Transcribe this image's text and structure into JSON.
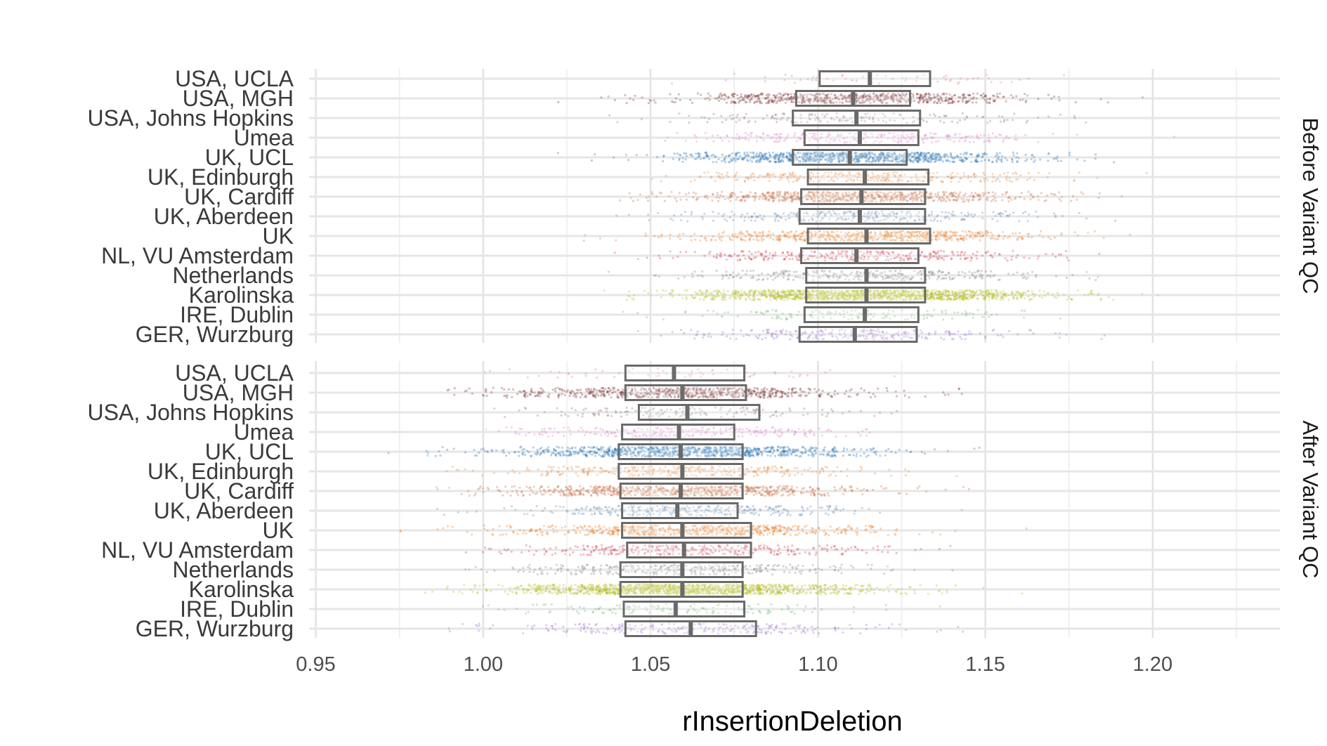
{
  "chart_data": {
    "type": "box-jitter",
    "xlabel": "rInsertionDeletion",
    "ylabel": "",
    "xlim": [
      0.948,
      1.238
    ],
    "x_ticks": [
      0.95,
      1.0,
      1.05,
      1.1,
      1.15,
      1.2
    ],
    "x_tick_labels": [
      "0.95",
      "1.00",
      "1.05",
      "1.10",
      "1.15",
      "1.20"
    ],
    "grid": true,
    "categories": [
      "USA, UCLA",
      "USA, MGH",
      "USA, Johns Hopkins",
      "Umea",
      "UK, UCL",
      "UK, Edinburgh",
      "UK, Cardiff",
      "UK, Aberdeen",
      "UK",
      "NL, VU Amsterdam",
      "Netherlands",
      "Karolinska",
      "IRE, Dublin",
      "GER, Wurzburg"
    ],
    "series_colors": {
      "USA, UCLA": "#e07b82",
      "USA, MGH": "#7b2f2f",
      "USA, Johns Hopkins": "#8c6d6d",
      "Umea": "#e37ac9",
      "UK, UCL": "#1f6fb4",
      "UK, Edinburgh": "#e8893a",
      "UK, Cardiff": "#c96a3a",
      "UK, Aberdeen": "#5e86b0",
      "UK": "#f07a1a",
      "NL, VU Amsterdam": "#d7334a",
      "Netherlands": "#7f7f7f",
      "Karolinska": "#b5be1c",
      "IRE, Dublin": "#6ab36a",
      "GER, Wurzburg": "#9a6bc9"
    },
    "density": {
      "USA, UCLA": 60,
      "USA, MGH": 700,
      "USA, Johns Hopkins": 160,
      "Umea": 260,
      "UK, UCL": 900,
      "UK, Edinburgh": 330,
      "UK, Cardiff": 700,
      "UK, Aberdeen": 300,
      "UK": 600,
      "NL, VU Amsterdam": 340,
      "Netherlands": 330,
      "Karolinska": 1300,
      "IRE, Dublin": 140,
      "GER, Wurzburg": 260
    },
    "facets": [
      {
        "label": "Before Variant QC",
        "boxes": {
          "USA, UCLA": {
            "q1": 1.1005,
            "median": 1.1155,
            "q3": 1.1335,
            "min": 1.078,
            "max": 1.162
          },
          "USA, MGH": {
            "q1": 1.0935,
            "median": 1.1105,
            "q3": 1.1275,
            "min": 1.03,
            "max": 1.2
          },
          "USA, Johns Hopkins": {
            "q1": 1.0925,
            "median": 1.1115,
            "q3": 1.1305,
            "min": 1.04,
            "max": 1.18
          },
          "Umea": {
            "q1": 1.096,
            "median": 1.1125,
            "q3": 1.13,
            "min": 1.055,
            "max": 1.17
          },
          "UK, UCL": {
            "q1": 1.0925,
            "median": 1.1095,
            "q3": 1.1265,
            "min": 1.025,
            "max": 1.195
          },
          "UK, Edinburgh": {
            "q1": 1.097,
            "median": 1.114,
            "q3": 1.133,
            "min": 1.045,
            "max": 1.185
          },
          "UK, Cardiff": {
            "q1": 1.095,
            "median": 1.113,
            "q3": 1.132,
            "min": 1.035,
            "max": 1.195
          },
          "UK, Aberdeen": {
            "q1": 1.0945,
            "median": 1.1125,
            "q3": 1.132,
            "min": 1.045,
            "max": 1.18
          },
          "UK": {
            "q1": 1.097,
            "median": 1.1145,
            "q3": 1.1335,
            "min": 1.04,
            "max": 1.19
          },
          "NL, VU Amsterdam": {
            "q1": 1.095,
            "median": 1.1115,
            "q3": 1.13,
            "min": 1.045,
            "max": 1.18
          },
          "Netherlands": {
            "q1": 1.0965,
            "median": 1.1145,
            "q3": 1.132,
            "min": 1.045,
            "max": 1.19
          },
          "Karolinska": {
            "q1": 1.0965,
            "median": 1.1145,
            "q3": 1.132,
            "min": 1.04,
            "max": 1.185
          },
          "IRE, Dublin": {
            "q1": 1.096,
            "median": 1.114,
            "q3": 1.13,
            "min": 1.055,
            "max": 1.17
          },
          "GER, Wurzburg": {
            "q1": 1.0945,
            "median": 1.111,
            "q3": 1.1295,
            "min": 1.045,
            "max": 1.18
          }
        }
      },
      {
        "label": "After Variant QC",
        "boxes": {
          "USA, UCLA": {
            "q1": 1.0425,
            "median": 1.057,
            "q3": 1.078,
            "min": 1.01,
            "max": 1.105
          },
          "USA, MGH": {
            "q1": 1.0425,
            "median": 1.0595,
            "q3": 1.0785,
            "min": 0.985,
            "max": 1.135
          },
          "USA, Johns Hopkins": {
            "q1": 1.0465,
            "median": 1.061,
            "q3": 1.0825,
            "min": 1.01,
            "max": 1.11
          },
          "Umea": {
            "q1": 1.0415,
            "median": 1.0585,
            "q3": 1.075,
            "min": 1.0,
            "max": 1.115
          },
          "UK, UCL": {
            "q1": 1.0405,
            "median": 1.059,
            "q3": 1.0775,
            "min": 0.98,
            "max": 1.135
          },
          "UK, Edinburgh": {
            "q1": 1.0405,
            "median": 1.0595,
            "q3": 1.0775,
            "min": 0.985,
            "max": 1.13
          },
          "UK, Cardiff": {
            "q1": 1.041,
            "median": 1.059,
            "q3": 1.0775,
            "min": 0.985,
            "max": 1.14
          },
          "UK, Aberdeen": {
            "q1": 1.0415,
            "median": 1.058,
            "q3": 1.076,
            "min": 0.995,
            "max": 1.12
          },
          "UK": {
            "q1": 1.0415,
            "median": 1.0595,
            "q3": 1.08,
            "min": 0.985,
            "max": 1.135
          },
          "NL, VU Amsterdam": {
            "q1": 1.043,
            "median": 1.06,
            "q3": 1.08,
            "min": 1.0,
            "max": 1.125
          },
          "Netherlands": {
            "q1": 1.041,
            "median": 1.0595,
            "q3": 1.0775,
            "min": 0.995,
            "max": 1.125
          },
          "Karolinska": {
            "q1": 1.041,
            "median": 1.0595,
            "q3": 1.0775,
            "min": 0.985,
            "max": 1.145
          },
          "IRE, Dublin": {
            "q1": 1.042,
            "median": 1.0575,
            "q3": 1.078,
            "min": 1.0,
            "max": 1.12
          },
          "GER, Wurzburg": {
            "q1": 1.0425,
            "median": 1.062,
            "q3": 1.0815,
            "min": 0.995,
            "max": 1.13
          }
        }
      }
    ]
  }
}
